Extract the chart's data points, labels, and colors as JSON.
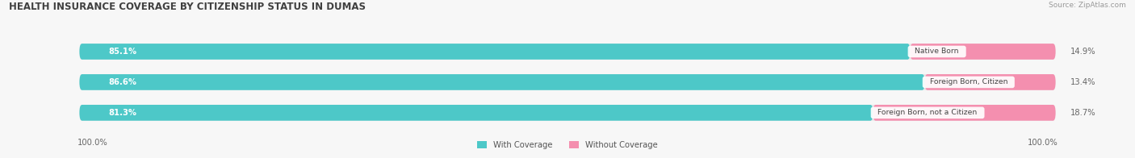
{
  "title": "HEALTH INSURANCE COVERAGE BY CITIZENSHIP STATUS IN DUMAS",
  "source": "Source: ZipAtlas.com",
  "categories": [
    "Native Born",
    "Foreign Born, Citizen",
    "Foreign Born, not a Citizen"
  ],
  "with_coverage": [
    85.1,
    86.6,
    81.3
  ],
  "without_coverage": [
    14.9,
    13.4,
    18.7
  ],
  "color_with": "#4DC8C8",
  "color_without": "#F48FAF",
  "color_bg_bar": "#e8e8e8",
  "color_bg_fig": "#f7f7f7",
  "title_fontsize": 8.5,
  "label_fontsize": 7.2,
  "source_fontsize": 6.5,
  "legend_fontsize": 7.2,
  "left_label": "100.0%",
  "right_label": "100.0%",
  "bar_height": 0.52,
  "bar_rounding": 0.26,
  "x_min": 0,
  "x_max": 100
}
